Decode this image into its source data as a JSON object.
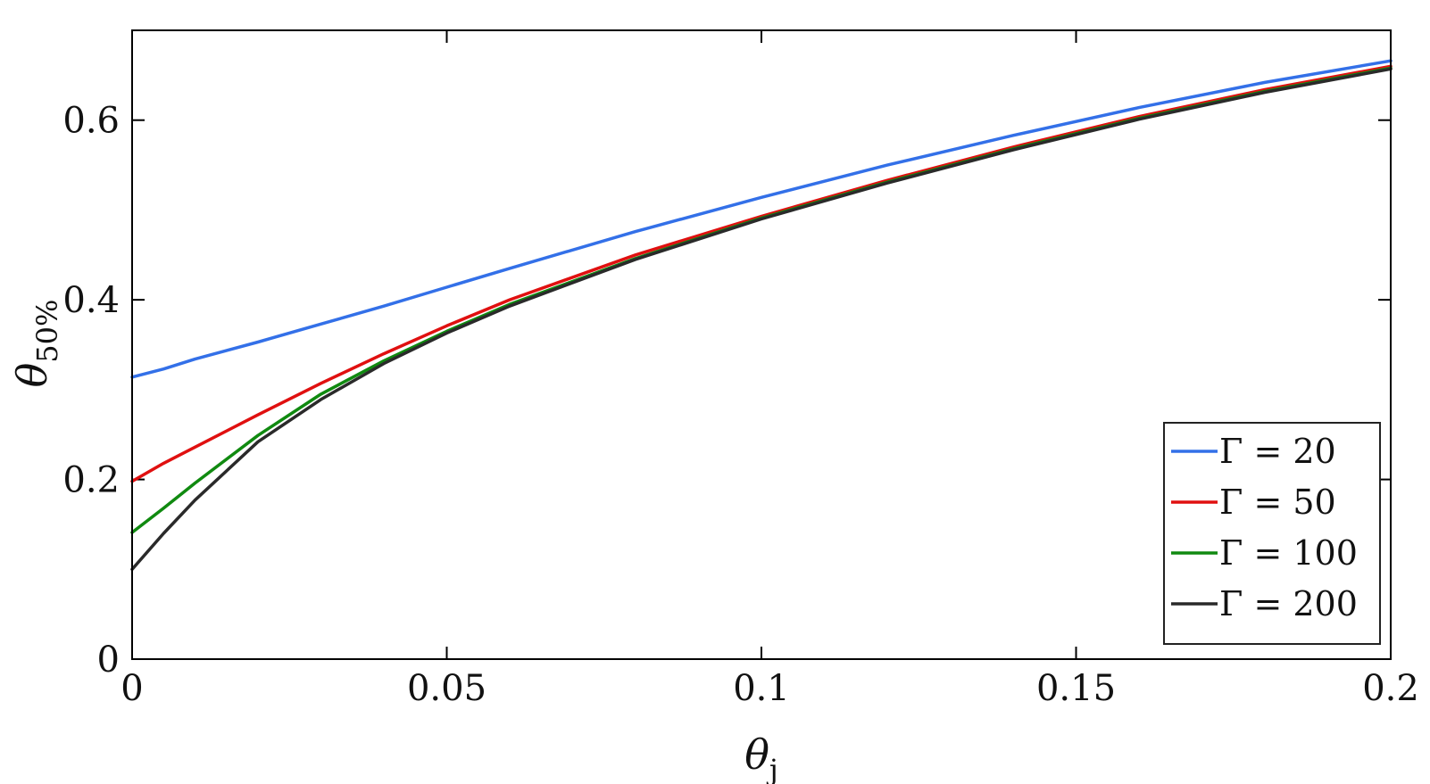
{
  "chart_data": {
    "type": "line",
    "title": "",
    "xlabel": "θ",
    "xlabel_sub": "j",
    "ylabel": "θ",
    "ylabel_sub": "50%",
    "xlim": [
      0,
      0.2
    ],
    "ylim": [
      0,
      0.7
    ],
    "xticks": [
      0,
      0.05,
      0.1,
      0.15,
      0.2
    ],
    "xtick_labels": [
      "0",
      "0.05",
      "0.1",
      "0.15",
      "0.2"
    ],
    "yticks": [
      0,
      0.2,
      0.4,
      0.6
    ],
    "ytick_labels": [
      "0",
      "0.2",
      "0.4",
      "0.6"
    ],
    "grid": false,
    "legend_position": "bottom-right",
    "x": [
      0,
      0.005,
      0.01,
      0.02,
      0.03,
      0.04,
      0.05,
      0.06,
      0.08,
      0.1,
      0.12,
      0.14,
      0.16,
      0.18,
      0.2
    ],
    "series": [
      {
        "name": "Γ = 20",
        "color": "#3370e8",
        "values": [
          0.314,
          0.323,
          0.334,
          0.353,
          0.373,
          0.393,
          0.414,
          0.435,
          0.476,
          0.514,
          0.55,
          0.583,
          0.614,
          0.642,
          0.666
        ]
      },
      {
        "name": "Γ = 50",
        "color": "#e01010",
        "values": [
          0.198,
          0.218,
          0.236,
          0.272,
          0.307,
          0.34,
          0.371,
          0.4,
          0.45,
          0.493,
          0.533,
          0.57,
          0.604,
          0.634,
          0.66
        ]
      },
      {
        "name": "Γ = 100",
        "color": "#108a10",
        "values": [
          0.141,
          0.168,
          0.196,
          0.249,
          0.295,
          0.332,
          0.365,
          0.395,
          0.446,
          0.491,
          0.531,
          0.568,
          0.602,
          0.632,
          0.658
        ]
      },
      {
        "name": "Γ = 200",
        "color": "#2a2a2a",
        "values": [
          0.1,
          0.14,
          0.177,
          0.242,
          0.289,
          0.329,
          0.363,
          0.393,
          0.445,
          0.49,
          0.53,
          0.567,
          0.601,
          0.631,
          0.657
        ]
      }
    ]
  }
}
